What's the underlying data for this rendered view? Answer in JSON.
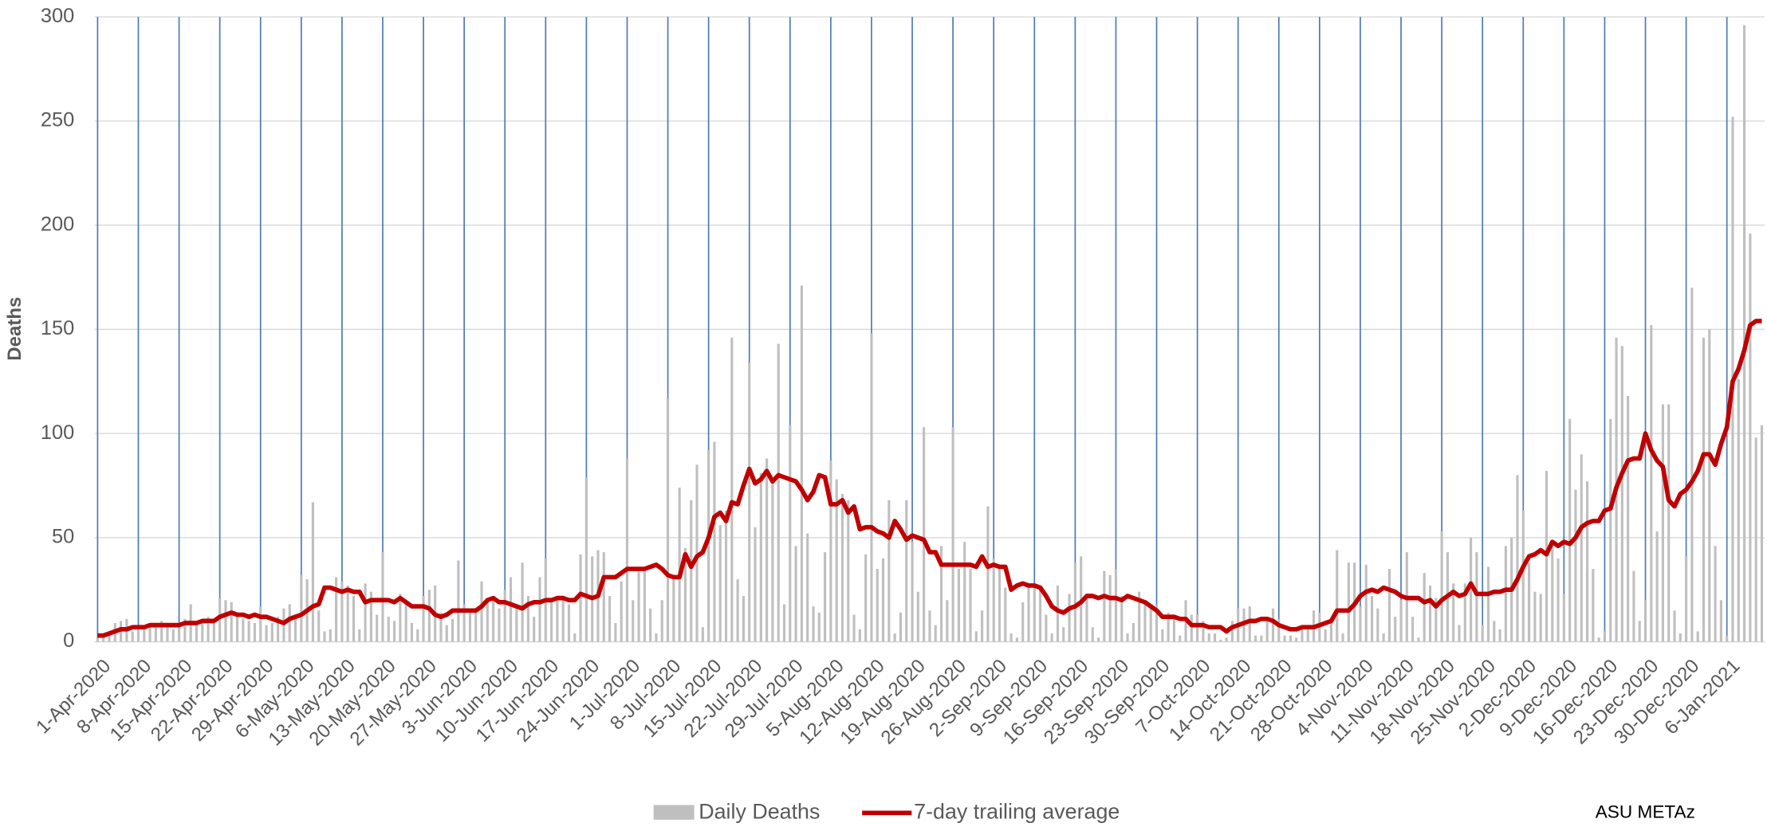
{
  "chart_data": {
    "type": "bar-line",
    "y_label": "Deaths",
    "annotation": "ASU METAz",
    "ylim": [
      0,
      300
    ],
    "yticks": [
      0,
      50,
      100,
      150,
      200,
      250,
      300
    ],
    "grid": true,
    "legend": "bottom",
    "categories": [
      "1-Apr-2020",
      null,
      null,
      null,
      null,
      null,
      null,
      "8-Apr-2020",
      null,
      null,
      null,
      null,
      null,
      null,
      "15-Apr-2020",
      null,
      null,
      null,
      null,
      null,
      null,
      "22-Apr-2020",
      null,
      null,
      null,
      null,
      null,
      null,
      "29-Apr-2020",
      null,
      null,
      null,
      null,
      null,
      null,
      "6-May-2020",
      null,
      null,
      null,
      null,
      null,
      null,
      "13-May-2020",
      null,
      null,
      null,
      null,
      null,
      null,
      "20-May-2020",
      null,
      null,
      null,
      null,
      null,
      null,
      "27-May-2020",
      null,
      null,
      null,
      null,
      null,
      null,
      "3-Jun-2020",
      null,
      null,
      null,
      null,
      null,
      null,
      "10-Jun-2020",
      null,
      null,
      null,
      null,
      null,
      null,
      "17-Jun-2020",
      null,
      null,
      null,
      null,
      null,
      null,
      "24-Jun-2020",
      null,
      null,
      null,
      null,
      null,
      null,
      "1-Jul-2020",
      null,
      null,
      null,
      null,
      null,
      null,
      "8-Jul-2020",
      null,
      null,
      null,
      null,
      null,
      null,
      "15-Jul-2020",
      null,
      null,
      null,
      null,
      null,
      null,
      "22-Jul-2020",
      null,
      null,
      null,
      null,
      null,
      null,
      "29-Jul-2020",
      null,
      null,
      null,
      null,
      null,
      null,
      "5-Aug-2020",
      null,
      null,
      null,
      null,
      null,
      null,
      "12-Aug-2020",
      null,
      null,
      null,
      null,
      null,
      null,
      "19-Aug-2020",
      null,
      null,
      null,
      null,
      null,
      null,
      "26-Aug-2020",
      null,
      null,
      null,
      null,
      null,
      null,
      "2-Sep-2020",
      null,
      null,
      null,
      null,
      null,
      null,
      "9-Sep-2020",
      null,
      null,
      null,
      null,
      null,
      null,
      "16-Sep-2020",
      null,
      null,
      null,
      null,
      null,
      null,
      "23-Sep-2020",
      null,
      null,
      null,
      null,
      null,
      null,
      "30-Sep-2020",
      null,
      null,
      null,
      null,
      null,
      null,
      "7-Oct-2020",
      null,
      null,
      null,
      null,
      null,
      null,
      "14-Oct-2020",
      null,
      null,
      null,
      null,
      null,
      null,
      "21-Oct-2020",
      null,
      null,
      null,
      null,
      null,
      null,
      "28-Oct-2020",
      null,
      null,
      null,
      null,
      null,
      null,
      "4-Nov-2020",
      null,
      null,
      null,
      null,
      null,
      null,
      "11-Nov-2020",
      null,
      null,
      null,
      null,
      null,
      null,
      "18-Nov-2020",
      null,
      null,
      null,
      null,
      null,
      null,
      "25-Nov-2020",
      null,
      null,
      null,
      null,
      null,
      null,
      "2-Dec-2020",
      null,
      null,
      null,
      null,
      null,
      null,
      "9-Dec-2020",
      null,
      null,
      null,
      null,
      null,
      null,
      "16-Dec-2020",
      null,
      null,
      null,
      null,
      null,
      null,
      "23-Dec-2020",
      null,
      null,
      null,
      null,
      null,
      null,
      "30-Dec-2020",
      null,
      null,
      null,
      null,
      null,
      null,
      "6-Jan-2021",
      null,
      null,
      null,
      null,
      null,
      null
    ],
    "series": [
      {
        "name": "Daily Deaths",
        "type": "bar",
        "color": "#bfbfbf",
        "values": [
          2,
          3,
          4,
          9,
          10,
          11,
          5,
          8,
          6,
          7,
          9,
          10,
          7,
          6,
          9,
          11,
          18,
          8,
          10,
          12,
          9,
          21,
          20,
          19,
          13,
          11,
          10,
          9,
          17,
          8,
          9,
          12,
          16,
          18,
          11,
          32,
          30,
          67,
          15,
          5,
          6,
          31,
          29,
          27,
          22,
          6,
          28,
          24,
          13,
          43,
          12,
          10,
          23,
          18,
          9,
          6,
          22,
          25,
          27,
          14,
          8,
          11,
          39,
          18,
          16,
          14,
          29,
          20,
          21,
          16,
          25,
          31,
          17,
          38,
          22,
          12,
          31,
          40,
          19,
          22,
          21,
          18,
          4,
          42,
          79,
          41,
          44,
          43,
          22,
          9,
          29,
          88,
          20,
          35,
          34,
          16,
          4,
          20,
          117,
          32,
          74,
          45,
          68,
          85,
          7,
          92,
          96,
          56,
          63,
          146,
          30,
          22,
          134,
          55,
          81,
          88,
          78,
          143,
          18,
          104,
          46,
          171,
          52,
          17,
          14,
          43,
          87,
          78,
          71,
          68,
          13,
          6,
          42,
          148,
          35,
          40,
          68,
          4,
          14,
          68,
          48,
          24,
          103,
          15,
          8,
          46,
          20,
          103,
          35,
          48,
          35,
          5,
          15,
          65,
          40,
          35,
          26,
          4,
          2,
          19,
          26,
          27,
          26,
          13,
          4,
          27,
          7,
          23,
          38,
          41,
          22,
          7,
          2,
          34,
          32,
          35,
          22,
          4,
          9,
          24,
          18,
          16,
          18,
          6,
          14,
          11,
          3,
          20,
          13,
          13,
          10,
          4,
          4,
          1,
          2,
          10,
          16,
          16,
          17,
          3,
          3,
          11,
          16,
          11,
          3,
          3,
          2,
          7,
          8,
          15,
          14,
          6,
          9,
          44,
          4,
          38,
          38,
          17,
          37,
          22,
          16,
          4,
          35,
          12,
          20,
          43,
          12,
          2,
          33,
          27,
          21,
          53,
          43,
          28,
          8,
          28,
          50,
          43,
          8,
          36,
          10,
          6,
          46,
          50,
          80,
          63,
          38,
          24,
          23,
          82,
          47,
          40,
          23,
          107,
          73,
          90,
          77,
          35,
          2,
          5,
          107,
          146,
          142,
          118,
          34,
          10,
          20,
          152,
          53,
          114,
          114,
          15,
          4,
          41,
          170,
          5,
          146,
          150,
          46,
          20,
          3,
          252,
          126,
          296,
          196,
          98,
          104
        ]
      },
      {
        "name": "7-day trailing average",
        "type": "line",
        "color": "#c00000",
        "values": [
          3,
          3,
          4,
          5,
          6,
          6,
          7,
          7,
          7,
          8,
          8,
          8,
          8,
          8,
          8,
          9,
          9,
          9,
          10,
          10,
          10,
          12,
          13,
          14,
          13,
          13,
          12,
          13,
          12,
          12,
          11,
          10,
          9,
          11,
          12,
          13,
          15,
          17,
          18,
          26,
          26,
          25,
          24,
          25,
          24,
          24,
          19,
          20,
          20,
          20,
          20,
          19,
          21,
          19,
          17,
          17,
          17,
          16,
          13,
          12,
          13,
          15,
          15,
          15,
          15,
          15,
          17,
          20,
          21,
          19,
          19,
          18,
          17,
          16,
          18,
          19,
          19,
          20,
          20,
          21,
          21,
          20,
          20,
          23,
          22,
          21,
          22,
          31,
          31,
          31,
          33,
          35,
          35,
          35,
          35,
          36,
          37,
          35,
          32,
          31,
          31,
          42,
          36,
          41,
          43,
          50,
          60,
          62,
          58,
          67,
          66,
          75,
          83,
          76,
          78,
          82,
          77,
          80,
          79,
          78,
          77,
          73,
          68,
          72,
          80,
          79,
          66,
          66,
          68,
          62,
          65,
          54,
          55,
          55,
          53,
          52,
          50,
          58,
          54,
          49,
          51,
          50,
          49,
          43,
          43,
          37,
          37,
          37,
          37,
          37,
          37,
          36,
          41,
          36,
          37,
          36,
          36,
          25,
          27,
          28,
          27,
          27,
          26,
          22,
          17,
          15,
          14,
          16,
          17,
          19,
          22,
          22,
          21,
          22,
          21,
          21,
          20,
          22,
          21,
          20,
          19,
          17,
          15,
          12,
          12,
          12,
          11,
          11,
          8,
          8,
          8,
          7,
          7,
          7,
          5,
          7,
          8,
          9,
          10,
          10,
          11,
          11,
          10,
          8,
          7,
          6,
          6,
          7,
          7,
          7,
          8,
          9,
          10,
          15,
          15,
          15,
          18,
          22,
          24,
          25,
          24,
          26,
          25,
          24,
          22,
          21,
          21,
          21,
          19,
          20,
          17,
          20,
          22,
          24,
          22,
          23,
          28,
          23,
          23,
          23,
          24,
          24,
          25,
          25,
          30,
          36,
          41,
          42,
          44,
          42,
          48,
          46,
          48,
          47,
          50,
          55,
          57,
          58,
          58,
          63,
          64,
          74,
          81,
          87,
          88,
          88,
          100,
          92,
          87,
          84,
          68,
          65,
          71,
          73,
          77,
          82,
          90,
          90,
          85,
          95,
          103,
          125,
          131,
          140,
          152,
          154,
          154
        ]
      }
    ]
  }
}
